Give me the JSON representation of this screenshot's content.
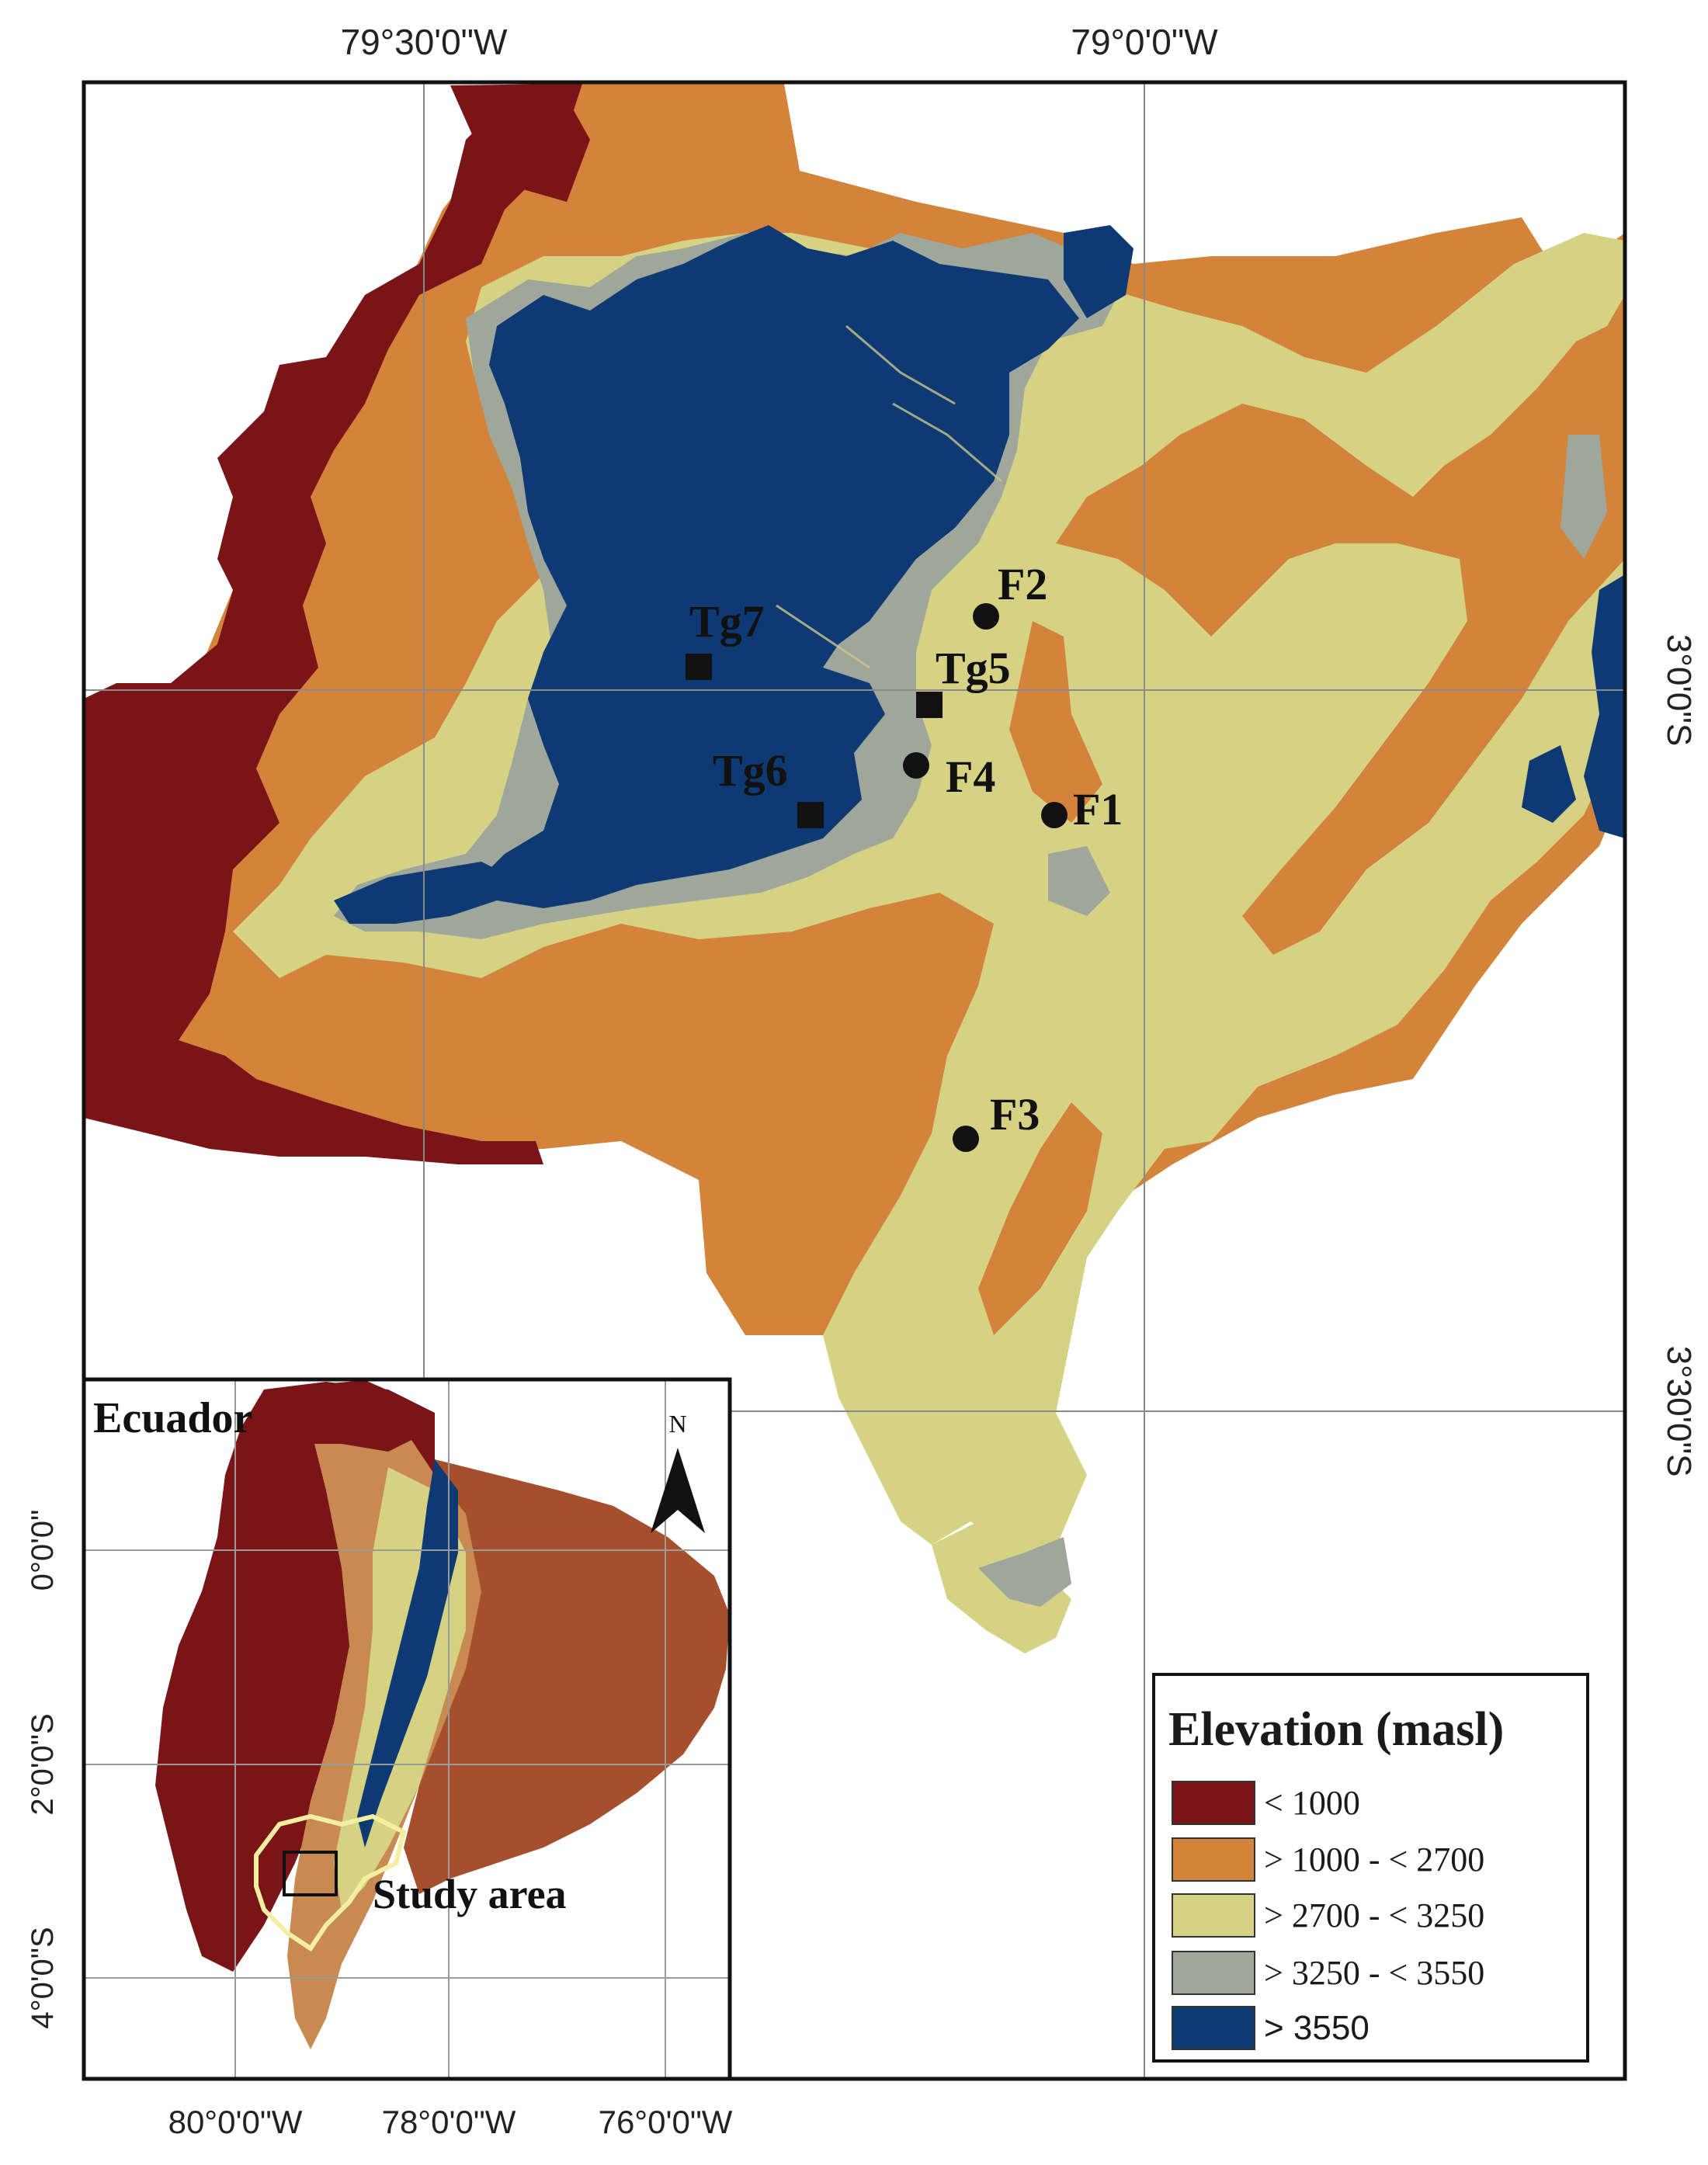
{
  "colors": {
    "elev_lt1000": "#7b1416",
    "elev_1000_2700": "#d4833a",
    "elev_2700_3250": "#d6d284",
    "elev_3250_3550": "#9ea79a",
    "elev_gt3550": "#0e3a73",
    "inset_high": "#c98a52",
    "inset_mid": "#a64f2d",
    "study_outline": "#f3efa2"
  },
  "main_map": {
    "top_labels": [
      "79°30'0\"W",
      "79°0'0\"W"
    ],
    "right_labels": [
      "3°0'0\"S",
      "3°30'0\"S"
    ],
    "sites": [
      {
        "label": "F2",
        "symbol": "circle"
      },
      {
        "label": "Tg7",
        "symbol": "square"
      },
      {
        "label": "Tg5",
        "symbol": "square"
      },
      {
        "label": "F4",
        "symbol": "circle"
      },
      {
        "label": "Tg6",
        "symbol": "square"
      },
      {
        "label": "F1",
        "symbol": "circle"
      },
      {
        "label": "F3",
        "symbol": "circle"
      }
    ]
  },
  "inset": {
    "title": "Ecuador",
    "north_label": "N",
    "study_label": "Study area",
    "left_labels": [
      "0°0'0\"",
      "2°0'0\"S",
      "4°0'0\"S"
    ],
    "bottom_labels": [
      "80°0'0\"W",
      "78°0'0\"W",
      "76°0'0\"W"
    ]
  },
  "legend": {
    "title": "Elevation (masl)",
    "items": [
      {
        "label": "< 1000",
        "color_key": "elev_lt1000"
      },
      {
        "label": "> 1000 - < 2700",
        "color_key": "elev_1000_2700"
      },
      {
        "label": "> 2700 - < 3250",
        "color_key": "elev_2700_3250"
      },
      {
        "label": "> 3250 - < 3550",
        "color_key": "elev_3250_3550"
      },
      {
        "label": "> 3550",
        "color_key": "elev_gt3550"
      }
    ]
  }
}
